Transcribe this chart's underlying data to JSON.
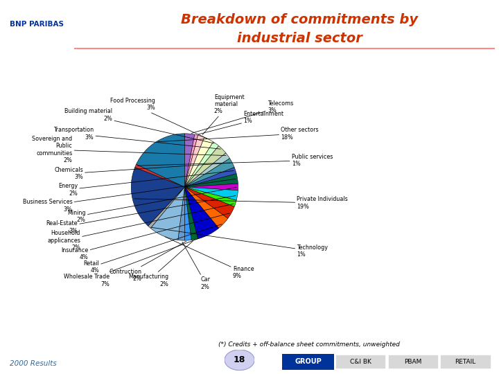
{
  "title_line1": "Breakdown of commitments by",
  "title_line2": "industrial sector",
  "footnote": "(*) Credits + off-balance sheet commitments, unweighted",
  "footer_left": "2000 Results",
  "footer_page": "18",
  "segments_cw_from_top": [
    {
      "label": "Telecoms",
      "label_display": "Telecoms",
      "pct": 3,
      "color": "#9966cc",
      "side": "right"
    },
    {
      "label": "Entertainment",
      "label_display": "Entertainment",
      "pct": 1,
      "color": "#ff99cc",
      "side": "right"
    },
    {
      "label": "Equipment material",
      "label_display": "Equipment\nmaterial",
      "pct": 2,
      "color": "#ffcccc",
      "side": "right"
    },
    {
      "label": "Food Processing",
      "label_display": "Food Processing",
      "pct": 3,
      "color": "#ffffcc",
      "side": "left"
    },
    {
      "label": "Building material",
      "label_display": "Building material",
      "pct": 2,
      "color": "#ccffcc",
      "side": "left"
    },
    {
      "label": "Transportation",
      "label_display": "Transportation",
      "pct": 3,
      "color": "#ccddaa",
      "side": "left"
    },
    {
      "label": "Sovereign and Public communities",
      "label_display": "Sovereign and\nPublic\ncommunities",
      "pct": 2,
      "color": "#aacccc",
      "side": "left"
    },
    {
      "label": "Chemicals",
      "label_display": "Chemicals",
      "pct": 3,
      "color": "#4499aa",
      "side": "left"
    },
    {
      "label": "Energy",
      "label_display": "Energy",
      "pct": 2,
      "color": "#3355bb",
      "side": "left"
    },
    {
      "label": "Business Services",
      "label_display": "Business Services",
      "pct": 3,
      "color": "#006644",
      "side": "left"
    },
    {
      "label": "Mining",
      "label_display": "Mining",
      "pct": 2,
      "color": "#cc00cc",
      "side": "left"
    },
    {
      "label": "Real-Estate",
      "label_display": "Real-Estate",
      "pct": 3,
      "color": "#00ccee",
      "side": "left"
    },
    {
      "label": "Household applicances",
      "label_display": "Household\napplicances",
      "pct": 2,
      "color": "#33ee00",
      "side": "left"
    },
    {
      "label": "Insurance",
      "label_display": "Insurance",
      "pct": 4,
      "color": "#dd2200",
      "side": "left"
    },
    {
      "label": "Retail",
      "label_display": "Retail",
      "pct": 4,
      "color": "#ff6600",
      "side": "left"
    },
    {
      "label": "Wholesale Trade",
      "label_display": "Wholesale Trade",
      "pct": 7,
      "color": "#0000cc",
      "side": "left"
    },
    {
      "label": "Manufacturing",
      "label_display": "Manufacturing",
      "pct": 2,
      "color": "#006633",
      "side": "left"
    },
    {
      "label": "Contruction",
      "label_display": "Contruction",
      "pct": 2,
      "color": "#3399ff",
      "side": "left"
    },
    {
      "label": "Car",
      "label_display": "Car",
      "pct": 2,
      "color": "#6699cc",
      "side": "right"
    },
    {
      "label": "Finance",
      "label_display": "Finance",
      "pct": 9,
      "color": "#88bbdd",
      "side": "right"
    },
    {
      "label": "Technology",
      "label_display": "Technology",
      "pct": 1,
      "color": "#aaaaaa",
      "side": "right"
    },
    {
      "label": "Private Individuals",
      "label_display": "Private Individuals",
      "pct": 19,
      "color": "#1a3f8f",
      "side": "right"
    },
    {
      "label": "Public services",
      "label_display": "Public services",
      "pct": 1,
      "color": "#cc3333",
      "side": "right"
    },
    {
      "label": "Other sectors",
      "label_display": "Other sectors",
      "pct": 18,
      "color": "#1a7aaa",
      "side": "right"
    }
  ],
  "title_color": "#cc3300",
  "line_color": "#ff8888",
  "footer_color": "#336699"
}
